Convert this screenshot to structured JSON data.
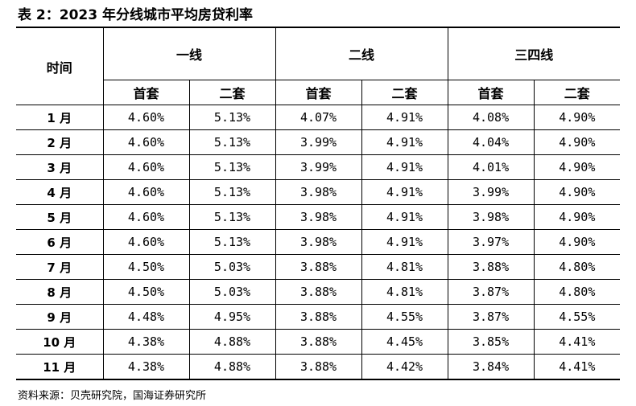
{
  "title": "表 2：2023 年分线城市平均房贷利率",
  "header": {
    "time_label": "时间",
    "groups": [
      "一线",
      "二线",
      "三四线"
    ],
    "sub": [
      "首套",
      "二套",
      "首套",
      "二套",
      "首套",
      "二套"
    ]
  },
  "rows": [
    {
      "month": "1 月",
      "values": [
        "4.60%",
        "5.13%",
        "4.07%",
        "4.91%",
        "4.08%",
        "4.90%"
      ]
    },
    {
      "month": "2 月",
      "values": [
        "4.60%",
        "5.13%",
        "3.99%",
        "4.91%",
        "4.04%",
        "4.90%"
      ]
    },
    {
      "month": "3 月",
      "values": [
        "4.60%",
        "5.13%",
        "3.99%",
        "4.91%",
        "4.01%",
        "4.90%"
      ]
    },
    {
      "month": "4 月",
      "values": [
        "4.60%",
        "5.13%",
        "3.98%",
        "4.91%",
        "3.99%",
        "4.90%"
      ]
    },
    {
      "month": "5 月",
      "values": [
        "4.60%",
        "5.13%",
        "3.98%",
        "4.91%",
        "3.98%",
        "4.90%"
      ]
    },
    {
      "month": "6 月",
      "values": [
        "4.60%",
        "5.13%",
        "3.98%",
        "4.91%",
        "3.97%",
        "4.90%"
      ]
    },
    {
      "month": "7 月",
      "values": [
        "4.50%",
        "5.03%",
        "3.88%",
        "4.81%",
        "3.88%",
        "4.80%"
      ]
    },
    {
      "month": "8 月",
      "values": [
        "4.50%",
        "5.03%",
        "3.88%",
        "4.81%",
        "3.87%",
        "4.80%"
      ]
    },
    {
      "month": "9 月",
      "values": [
        "4.48%",
        "4.95%",
        "3.88%",
        "4.55%",
        "3.87%",
        "4.55%"
      ]
    },
    {
      "month": "10 月",
      "values": [
        "4.38%",
        "4.88%",
        "3.88%",
        "4.45%",
        "3.85%",
        "4.41%"
      ]
    },
    {
      "month": "11 月",
      "values": [
        "4.38%",
        "4.88%",
        "3.88%",
        "4.42%",
        "3.84%",
        "4.41%"
      ]
    }
  ],
  "source": "资料来源：贝壳研究院，国海证券研究所"
}
